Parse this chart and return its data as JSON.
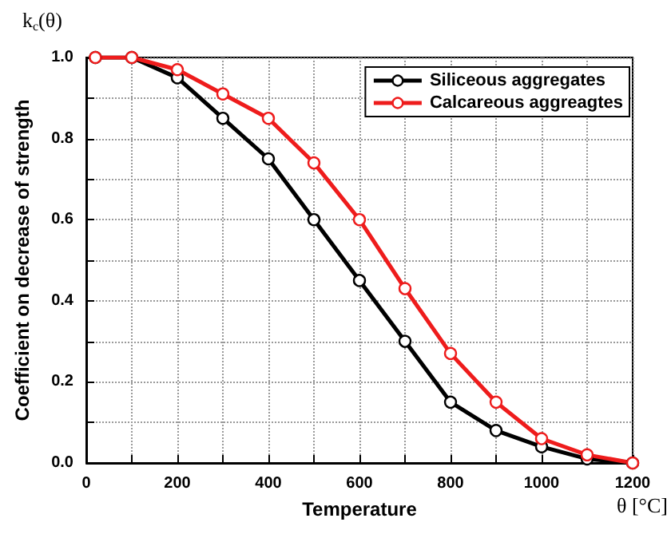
{
  "chart_data": {
    "type": "line",
    "xlabel": "Temperature",
    "ylabel": "Coefficient on decrease of strength",
    "annotations": [
      "k$_{c}$(θ)",
      "θ [°C]"
    ],
    "x": [
      20,
      100,
      200,
      300,
      400,
      500,
      600,
      700,
      800,
      900,
      1000,
      1100,
      1200
    ],
    "series": [
      {
        "name": "Siliceous aggregates",
        "color": "#000000",
        "values": [
          1,
          1,
          0.95,
          0.85,
          0.75,
          0.6,
          0.45,
          0.3,
          0.15,
          0.08,
          0.04,
          0.01,
          0
        ]
      },
      {
        "name": "Calcareous aggreagtes",
        "color": "#ee1c1c",
        "values": [
          1,
          1,
          0.97,
          0.91,
          0.85,
          0.74,
          0.6,
          0.43,
          0.27,
          0.15,
          0.06,
          0.02,
          0
        ]
      }
    ],
    "xlim": [
      0,
      1200
    ],
    "xticks": [
      0,
      {
        "value": 100,
        "label": null
      },
      200,
      {
        "value": 300,
        "label": null
      },
      400,
      {
        "value": 500,
        "label": null
      },
      600,
      {
        "value": 700,
        "label": null
      },
      800,
      {
        "value": 900,
        "label": null
      },
      1000,
      {
        "value": 1100,
        "label": null
      },
      1200
    ],
    "ylim": [
      0,
      1
    ],
    "yticks": [
      {
        "value": 0,
        "label": "0.0"
      },
      {
        "value": 0.1,
        "label": null
      },
      0.2,
      {
        "value": 0.3,
        "label": null
      },
      0.4,
      {
        "value": 0.5,
        "label": null
      },
      0.6,
      {
        "value": 0.7,
        "label": null
      },
      0.8,
      {
        "value": 0.9,
        "label": null
      },
      {
        "value": 1,
        "label": "1.0"
      }
    ],
    "grid": true,
    "legend": "top right",
    "marker": "circle",
    "line_style": "solid"
  }
}
